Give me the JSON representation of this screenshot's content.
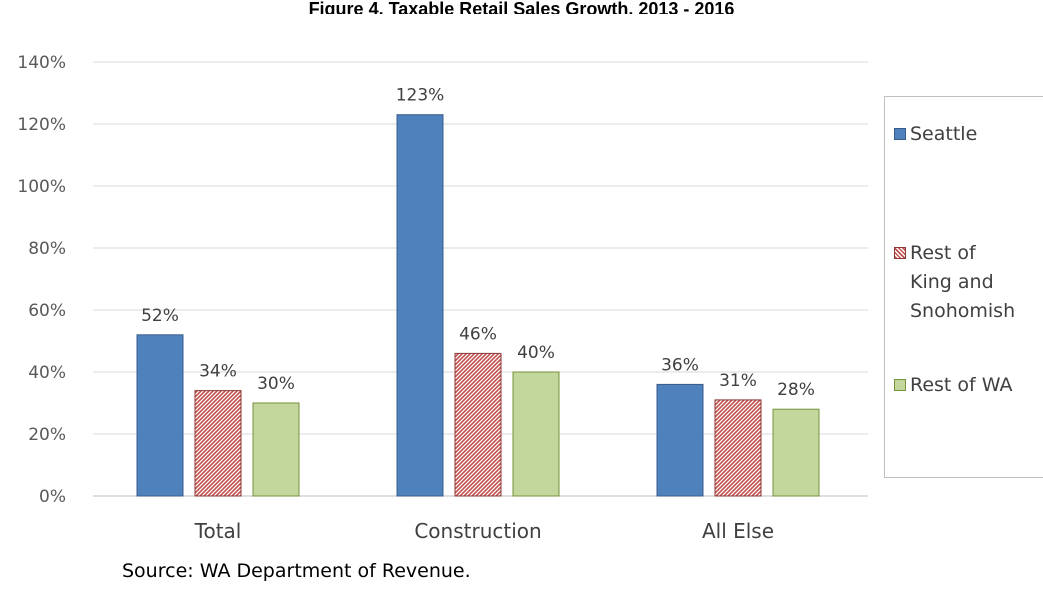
{
  "chart_data": {
    "type": "bar",
    "title": "Figure 4. Taxable Retail Sales Growth, 2013 - 2016",
    "categories": [
      "Total",
      "Construction",
      "All Else"
    ],
    "series": [
      {
        "name": "Seattle",
        "values": [
          52,
          123,
          36
        ],
        "labels": [
          "52%",
          "123%",
          "36%"
        ],
        "color": "#4f81bd",
        "fill": "solid"
      },
      {
        "name": "Rest of King and Snohomish",
        "values": [
          34,
          46,
          31
        ],
        "labels": [
          "34%",
          "46%",
          "31%"
        ],
        "color": "#c0504d",
        "fill": "hatch"
      },
      {
        "name": "Rest of WA",
        "values": [
          30,
          40,
          28
        ],
        "labels": [
          "30%",
          "40%",
          "28%"
        ],
        "color": "#c3d69b",
        "fill": "solid"
      }
    ],
    "ylim": [
      0,
      140
    ],
    "yticks": [
      "0%",
      "20%",
      "40%",
      "60%",
      "80%",
      "100%",
      "120%",
      "140%"
    ],
    "xlabel": "",
    "ylabel": "",
    "grid": true,
    "legend_position": "right"
  },
  "legend": {
    "items": [
      {
        "label": "Seattle"
      },
      {
        "label": "Rest of\nKing and\nSnohomish"
      },
      {
        "label": "Rest of WA"
      }
    ]
  },
  "source_note": "Source: WA Department of Revenue."
}
